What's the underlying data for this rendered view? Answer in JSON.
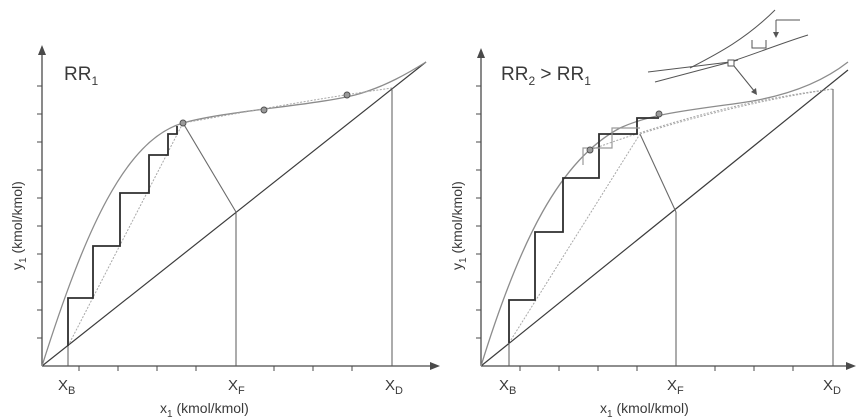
{
  "panels": [
    {
      "label": "RR",
      "label_sub": "1",
      "ylabel": "y",
      "ylabel_sub": "1",
      "ylabel_rest": " (kmol/kmol)",
      "xlabel": "x",
      "xlabel_sub": "1",
      "xlabel_rest": " (kmol/kmol)",
      "xb": "X",
      "xb_sub": "B",
      "xf": "X",
      "xf_sub": "F",
      "xd": "X",
      "xd_sub": "D"
    },
    {
      "label_a": "RR",
      "label_a_sub": "2",
      "label_gt": " > ",
      "label_b": "RR",
      "label_b_sub": "1",
      "ylabel": "y",
      "ylabel_sub": "1",
      "ylabel_rest": " (kmol/kmol)",
      "xlabel": "x",
      "xlabel_sub": "1",
      "xlabel_rest": " (kmol/kmol)",
      "xb": "X",
      "xb_sub": "B",
      "xf": "X",
      "xf_sub": "F",
      "xd": "X",
      "xd_sub": "D"
    }
  ]
}
